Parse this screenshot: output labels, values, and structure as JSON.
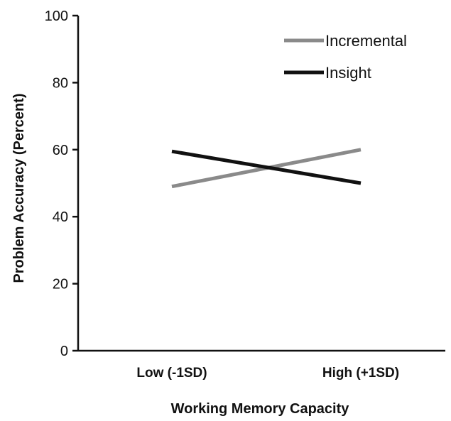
{
  "chart_data": {
    "type": "line",
    "categories": [
      "Low (-1SD)",
      "High (+1SD)"
    ],
    "series": [
      {
        "name": "Incremental",
        "values": [
          49,
          60
        ],
        "color": "#8a8a8a"
      },
      {
        "name": "Insight",
        "values": [
          59.5,
          50
        ],
        "color": "#111111"
      }
    ],
    "xlabel": "Working Memory Capacity",
    "ylabel": "Problem Accuracy  (Percent)",
    "ylim": [
      0,
      100
    ],
    "yticks": [
      0,
      20,
      40,
      60,
      80,
      100
    ],
    "grid": false,
    "legend_position": "top-right"
  }
}
